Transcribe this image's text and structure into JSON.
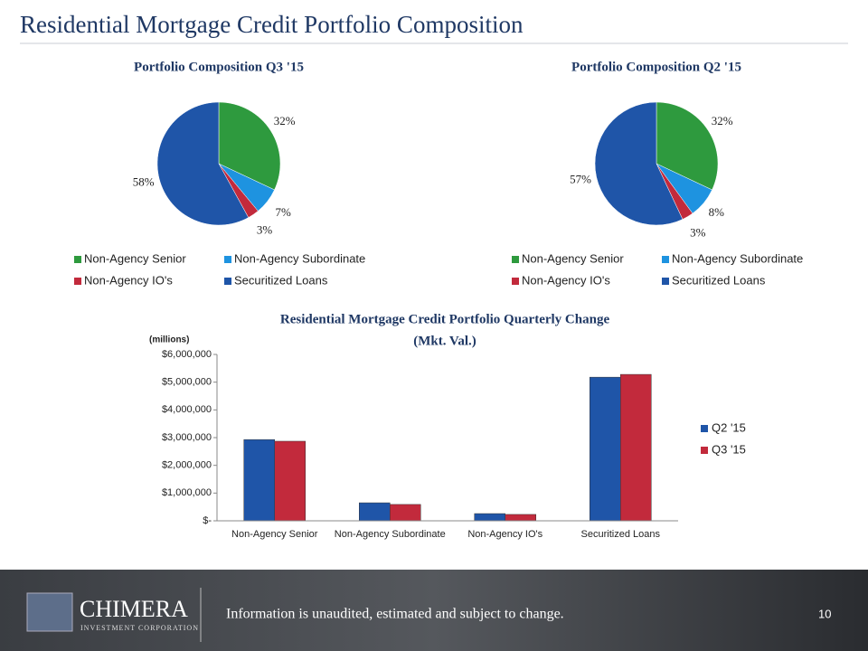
{
  "title": "Residential Mortgage Credit Portfolio Composition",
  "footer": {
    "note": "Information is unaudited, estimated and subject to change.",
    "page": "10",
    "logo": "CHIMERA",
    "logo_sub": "INVESTMENT CORPORATION"
  },
  "chart_data": [
    {
      "type": "pie",
      "title": "Portfolio Composition Q3 '15",
      "categories": [
        "Non-Agency Senior",
        "Non-Agency Subordinate",
        "Non-Agency IO's",
        "Securitized  Loans"
      ],
      "values": [
        32,
        7,
        3,
        58
      ],
      "value_labels": [
        "32%",
        "7%",
        "3%",
        "58%"
      ],
      "colors": [
        "#2e9a3e",
        "#1e93e0",
        "#c22a3c",
        "#1f55a8"
      ]
    },
    {
      "type": "pie",
      "title": "Portfolio  Composition Q2 '15",
      "categories": [
        "Non-Agency Senior",
        "Non-Agency Subordinate",
        "Non-Agency IO's",
        "Securitized  Loans"
      ],
      "values": [
        32,
        8,
        3,
        57
      ],
      "value_labels": [
        "32%",
        "8%",
        "3%",
        "57%"
      ],
      "colors": [
        "#2e9a3e",
        "#1e93e0",
        "#c22a3c",
        "#1f55a8"
      ]
    },
    {
      "type": "bar",
      "title": [
        "Residential Mortgage Credit Portfolio Quarterly Change",
        "(Mkt. Val.)"
      ],
      "y_label": "(millions)",
      "categories": [
        "Non-Agency Senior",
        "Non-Agency Subordinate",
        "Non-Agency IO's",
        "Securitized  Loans"
      ],
      "series": [
        {
          "name": "Q2 '15",
          "color": "#1f55a8",
          "values": [
            2930000,
            650000,
            260000,
            5180000
          ]
        },
        {
          "name": "Q3 '15",
          "color": "#c22a3c",
          "values": [
            2870000,
            590000,
            230000,
            5280000
          ]
        }
      ],
      "ylim": [
        0,
        6000000
      ],
      "yticks": [
        {
          "value": 0,
          "label": "$-"
        },
        {
          "value": 1000000,
          "label": "$1,000,000"
        },
        {
          "value": 2000000,
          "label": "$2,000,000"
        },
        {
          "value": 3000000,
          "label": "$3,000,000"
        },
        {
          "value": 4000000,
          "label": "$4,000,000"
        },
        {
          "value": 5000000,
          "label": "$5,000,000"
        },
        {
          "value": 6000000,
          "label": "$6,000,000"
        }
      ],
      "grid": false
    }
  ]
}
